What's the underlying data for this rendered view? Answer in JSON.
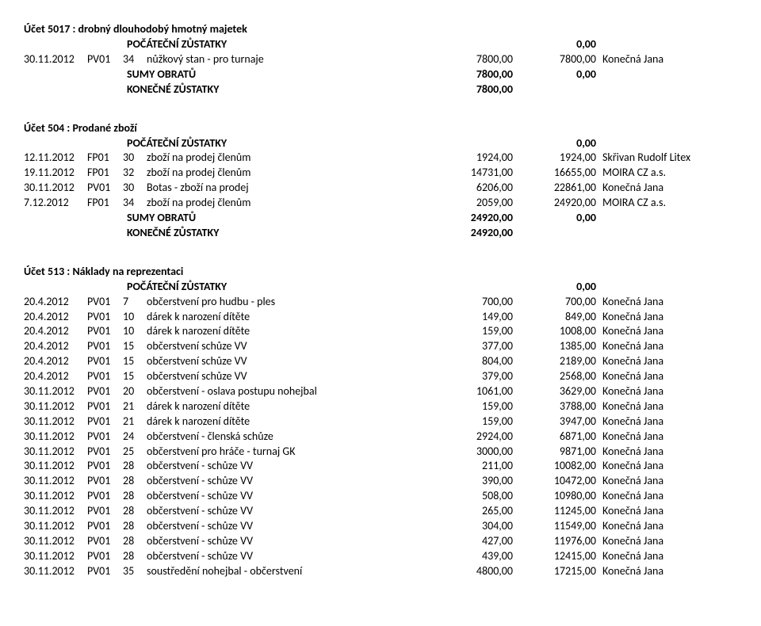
{
  "accounts": [
    {
      "title": "Účet 5017 : drobný dlouhodobý hmotný majetek",
      "opening_label": "POČÁTEČNÍ ZŮSTATKY",
      "opening_value": "0,00",
      "lines": [
        {
          "date": "30.11.2012",
          "doc": "PV01",
          "num": "34",
          "desc": "nůžkový stan - pro turnaje",
          "amt1": "7800,00",
          "amt2": "7800,00",
          "party": "Konečná Jana"
        }
      ],
      "sum_label": "SUMY OBRATŮ",
      "sum_v1": "7800,00",
      "sum_v2": "0,00",
      "closing_label": "KONEČNÉ ZŮSTATKY",
      "closing_value": "7800,00"
    },
    {
      "title": "Účet 504 : Prodané zboží",
      "opening_label": "POČÁTEČNÍ ZŮSTATKY",
      "opening_value": "0,00",
      "lines": [
        {
          "date": "12.11.2012",
          "doc": "FP01",
          "num": "30",
          "desc": "zboží na prodej členům",
          "amt1": "1924,00",
          "amt2": "1924,00",
          "party": "Skřivan Rudolf Litex"
        },
        {
          "date": "19.11.2012",
          "doc": "FP01",
          "num": "32",
          "desc": "zboží na prodej členům",
          "amt1": "14731,00",
          "amt2": "16655,00",
          "party": "MOIRA CZ a.s."
        },
        {
          "date": "30.11.2012",
          "doc": "PV01",
          "num": "30",
          "desc": "Botas - zboží na prodej",
          "amt1": "6206,00",
          "amt2": "22861,00",
          "party": "Konečná Jana"
        },
        {
          "date": "7.12.2012",
          "doc": "FP01",
          "num": "34",
          "desc": "zboží na prodej členům",
          "amt1": "2059,00",
          "amt2": "24920,00",
          "party": "MOIRA CZ a.s."
        }
      ],
      "sum_label": "SUMY OBRATŮ",
      "sum_v1": "24920,00",
      "sum_v2": "0,00",
      "closing_label": "KONEČNÉ ZŮSTATKY",
      "closing_value": "24920,00"
    },
    {
      "title": "Účet 513 : Náklady na reprezentaci",
      "opening_label": "POČÁTEČNÍ ZŮSTATKY",
      "opening_value": "0,00",
      "lines": [
        {
          "date": "20.4.2012",
          "doc": "PV01",
          "num": "7",
          "desc": "občerstvení pro hudbu - ples",
          "amt1": "700,00",
          "amt2": "700,00",
          "party": "Konečná Jana"
        },
        {
          "date": "20.4.2012",
          "doc": "PV01",
          "num": "10",
          "desc": "dárek k narození dítěte",
          "amt1": "149,00",
          "amt2": "849,00",
          "party": "Konečná Jana"
        },
        {
          "date": "20.4.2012",
          "doc": "PV01",
          "num": "10",
          "desc": "dárek k narození dítěte",
          "amt1": "159,00",
          "amt2": "1008,00",
          "party": "Konečná Jana"
        },
        {
          "date": "20.4.2012",
          "doc": "PV01",
          "num": "15",
          "desc": "občerstvení schůze VV",
          "amt1": "377,00",
          "amt2": "1385,00",
          "party": "Konečná Jana"
        },
        {
          "date": "20.4.2012",
          "doc": "PV01",
          "num": "15",
          "desc": "občerstvení schůze VV",
          "amt1": "804,00",
          "amt2": "2189,00",
          "party": "Konečná Jana"
        },
        {
          "date": "20.4.2012",
          "doc": "PV01",
          "num": "15",
          "desc": "občerstvení schůze VV",
          "amt1": "379,00",
          "amt2": "2568,00",
          "party": "Konečná Jana"
        },
        {
          "date": "30.11.2012",
          "doc": "PV01",
          "num": "20",
          "desc": "občerstvení - oslava postupu nohejbal",
          "amt1": "1061,00",
          "amt2": "3629,00",
          "party": "Konečná Jana"
        },
        {
          "date": "30.11.2012",
          "doc": "PV01",
          "num": "21",
          "desc": "dárek k narození dítěte",
          "amt1": "159,00",
          "amt2": "3788,00",
          "party": "Konečná Jana"
        },
        {
          "date": "30.11.2012",
          "doc": "PV01",
          "num": "21",
          "desc": "dárek k narození dítěte",
          "amt1": "159,00",
          "amt2": "3947,00",
          "party": "Konečná Jana"
        },
        {
          "date": "30.11.2012",
          "doc": "PV01",
          "num": "24",
          "desc": "občerstvení - členská schůze",
          "amt1": "2924,00",
          "amt2": "6871,00",
          "party": "Konečná Jana"
        },
        {
          "date": "30.11.2012",
          "doc": "PV01",
          "num": "25",
          "desc": "občerstvení pro hráče - turnaj GK",
          "amt1": "3000,00",
          "amt2": "9871,00",
          "party": "Konečná Jana"
        },
        {
          "date": "30.11.2012",
          "doc": "PV01",
          "num": "28",
          "desc": "občerstvení - schůze VV",
          "amt1": "211,00",
          "amt2": "10082,00",
          "party": "Konečná Jana"
        },
        {
          "date": "30.11.2012",
          "doc": "PV01",
          "num": "28",
          "desc": "občerstvení - schůze VV",
          "amt1": "390,00",
          "amt2": "10472,00",
          "party": "Konečná Jana"
        },
        {
          "date": "30.11.2012",
          "doc": "PV01",
          "num": "28",
          "desc": "občerstvení - schůze VV",
          "amt1": "508,00",
          "amt2": "10980,00",
          "party": "Konečná Jana"
        },
        {
          "date": "30.11.2012",
          "doc": "PV01",
          "num": "28",
          "desc": "občerstvení - schůze VV",
          "amt1": "265,00",
          "amt2": "11245,00",
          "party": "Konečná Jana"
        },
        {
          "date": "30.11.2012",
          "doc": "PV01",
          "num": "28",
          "desc": "občerstvení - schůze VV",
          "amt1": "304,00",
          "amt2": "11549,00",
          "party": "Konečná Jana"
        },
        {
          "date": "30.11.2012",
          "doc": "PV01",
          "num": "28",
          "desc": "občerstvení - schůze VV",
          "amt1": "427,00",
          "amt2": "11976,00",
          "party": "Konečná Jana"
        },
        {
          "date": "30.11.2012",
          "doc": "PV01",
          "num": "28",
          "desc": "občerstvení - schůze VV",
          "amt1": "439,00",
          "amt2": "12415,00",
          "party": "Konečná Jana"
        },
        {
          "date": "30.11.2012",
          "doc": "PV01",
          "num": "35",
          "desc": "soustředění nohejbal - občerstvení",
          "amt1": "4800,00",
          "amt2": "17215,00",
          "party": "Konečná Jana"
        }
      ]
    }
  ]
}
